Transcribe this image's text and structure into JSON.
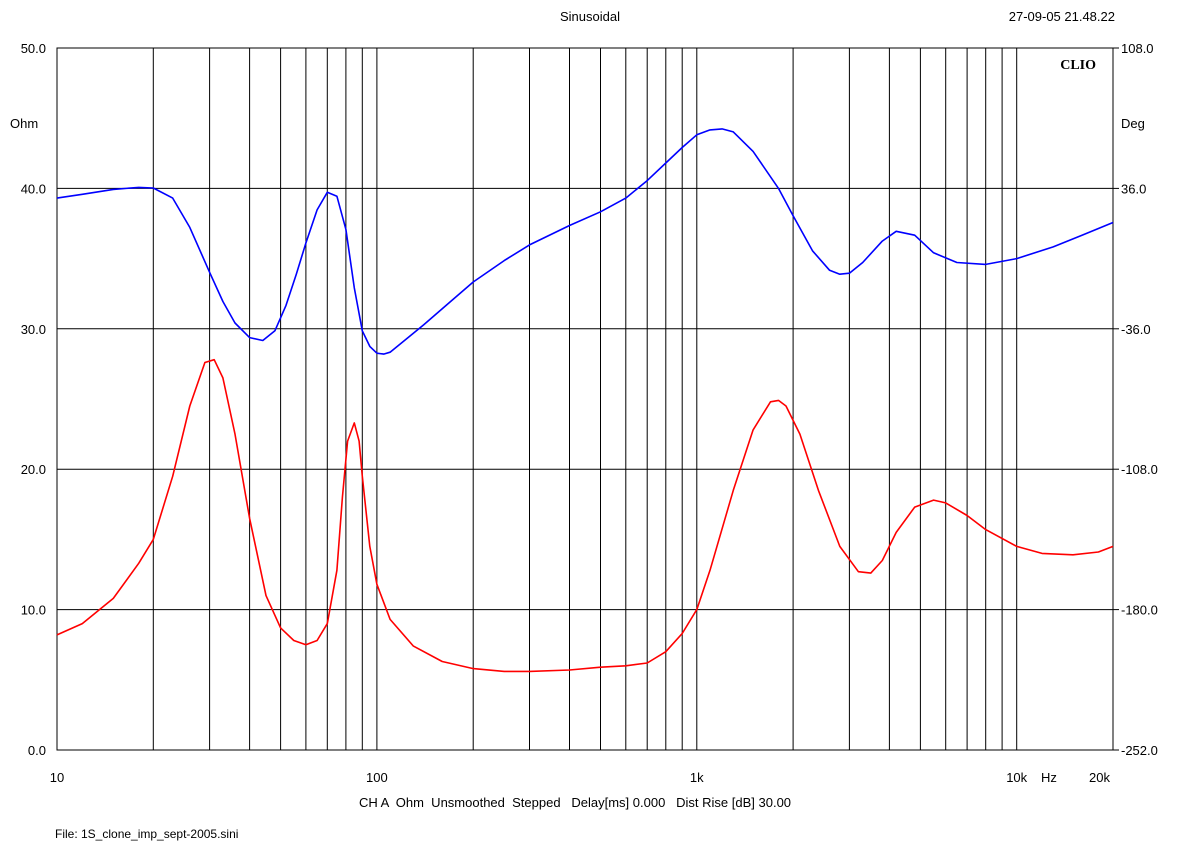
{
  "header": {
    "title": "Sinusoidal",
    "timestamp": "27-09-05 21.48.22",
    "logo": "CLIO"
  },
  "footer": {
    "settings": "CH A  Ohm  Unsmoothed  Stepped   Delay[ms] 0.000   Dist Rise [dB] 30.00",
    "file": "File: 1S_clone_imp_sept-2005.sini"
  },
  "colors": {
    "background": "#ffffff",
    "grid": "#000000",
    "magnitude": "#ff0000",
    "phase": "#0000ff"
  },
  "chart_data": {
    "type": "line",
    "x_scale": "log",
    "xlim": [
      10,
      20000
    ],
    "x_tick_values": [
      10,
      100,
      1000,
      10000,
      20000
    ],
    "x_tick_labels": [
      "10",
      "100",
      "1k",
      "10k",
      "20k"
    ],
    "x_unit_label": "Hz",
    "ylabel": "Ohm",
    "ylim": [
      0,
      50
    ],
    "y_ticks": [
      0,
      10,
      20,
      30,
      40,
      50
    ],
    "y_tick_labels": [
      "0.0",
      "10.0",
      "20.0",
      "30.0",
      "40.0",
      "50.0"
    ],
    "y2label": "Deg",
    "y2lim": [
      -252,
      108
    ],
    "y2_ticks": [
      -252,
      -180,
      -108,
      -36,
      36,
      108
    ],
    "y2_tick_labels": [
      "-252.0",
      "-180.0",
      "-108.0",
      "-36.0",
      "36.0",
      "108.0"
    ],
    "grid": true,
    "series": [
      {
        "axis": "left",
        "color": "#ff0000",
        "x": [
          10,
          12,
          15,
          18,
          20,
          23,
          26,
          29,
          31,
          33,
          36,
          40,
          45,
          50,
          55,
          60,
          65,
          70,
          75,
          78,
          81,
          85,
          88,
          90,
          95,
          100,
          110,
          130,
          160,
          200,
          250,
          300,
          400,
          500,
          600,
          700,
          800,
          900,
          1000,
          1100,
          1300,
          1500,
          1700,
          1800,
          1900,
          2100,
          2400,
          2800,
          3200,
          3500,
          3800,
          4200,
          4800,
          5500,
          6000,
          7000,
          8000,
          10000,
          12000,
          15000,
          18000,
          20000
        ],
        "values": [
          8.2,
          9.0,
          10.8,
          13.3,
          15.0,
          19.5,
          24.5,
          27.6,
          27.8,
          26.5,
          22.5,
          16.5,
          11.0,
          8.7,
          7.8,
          7.5,
          7.8,
          9.0,
          12.8,
          18.0,
          22.0,
          23.3,
          22.0,
          19.5,
          14.5,
          11.8,
          9.3,
          7.4,
          6.3,
          5.8,
          5.6,
          5.6,
          5.7,
          5.9,
          6.0,
          6.2,
          7.0,
          8.3,
          10.0,
          12.8,
          18.5,
          22.8,
          24.8,
          24.9,
          24.5,
          22.5,
          18.5,
          14.5,
          12.7,
          12.6,
          13.5,
          15.5,
          17.3,
          17.8,
          17.6,
          16.7,
          15.7,
          14.5,
          14.0,
          13.9,
          14.1,
          14.5
        ]
      },
      {
        "axis": "right",
        "color": "#0000ff",
        "x": [
          10,
          12,
          15,
          18,
          20,
          23,
          26,
          30,
          33,
          36,
          40,
          44,
          48,
          52,
          56,
          60,
          65,
          70,
          75,
          80,
          85,
          90,
          95,
          100,
          105,
          110,
          120,
          140,
          170,
          200,
          250,
          300,
          400,
          500,
          600,
          700,
          800,
          900,
          1000,
          1100,
          1200,
          1300,
          1500,
          1800,
          2000,
          2300,
          2600,
          2800,
          3000,
          3300,
          3800,
          4200,
          4800,
          5500,
          6500,
          8000,
          10000,
          13000,
          16000,
          20000
        ],
        "values": [
          31.0,
          33.0,
          35.5,
          36.5,
          36.2,
          31.0,
          16.0,
          -7.0,
          -22.0,
          -33.0,
          -40.5,
          -42.0,
          -37.0,
          -24.0,
          -8.0,
          8.0,
          25.0,
          34.0,
          32.0,
          15.0,
          -15.0,
          -37.0,
          -45.0,
          -48.5,
          -49.0,
          -48.0,
          -43.0,
          -34.0,
          -22.0,
          -12.0,
          -1.0,
          7.0,
          17.0,
          24.0,
          31.0,
          40.0,
          49.0,
          57.0,
          63.5,
          66.0,
          66.5,
          65.0,
          55.0,
          36.0,
          22.0,
          4.0,
          -6.0,
          -8.0,
          -7.5,
          -2.0,
          9.0,
          14.0,
          12.0,
          3.0,
          -2.0,
          -3.0,
          0.0,
          6.0,
          12.0,
          18.5
        ]
      }
    ]
  }
}
